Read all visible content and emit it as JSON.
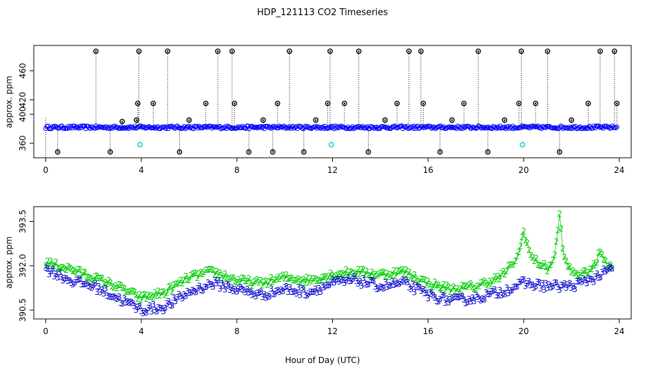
{
  "title": "HDP_121113  CO2 Timeseries",
  "xlabel": "Hour of Day (UTC)",
  "chart_data": [
    {
      "type": "scatter",
      "panel": "top",
      "ylabel": "approx. ppm",
      "xlim": [
        -0.5,
        24.5
      ],
      "ylim": [
        340,
        495
      ],
      "x_ticks": [
        0,
        4,
        8,
        12,
        16,
        20,
        24
      ],
      "y_ticks": [
        360,
        400,
        420,
        460
      ],
      "baseline": 382,
      "series": [
        {
          "color": "#000000",
          "x": [
            0.5,
            2.1,
            2.7,
            3.2,
            3.8,
            3.85,
            3.9,
            4.5,
            5.1,
            5.6,
            6.0,
            6.7,
            7.2,
            7.8,
            7.9,
            8.5,
            9.1,
            9.5,
            9.7,
            10.2,
            10.8,
            11.3,
            11.8,
            11.9,
            12.5,
            13.1,
            13.5,
            14.2,
            14.7,
            15.2,
            15.7,
            15.8,
            16.5,
            17.0,
            17.5,
            18.1,
            18.5,
            19.2,
            19.8,
            19.9,
            20.5,
            21.0,
            21.5,
            22.0,
            22.7,
            23.2,
            23.8,
            23.9
          ],
          "y": [
            348,
            487,
            348,
            390,
            392,
            415,
            487,
            415,
            487,
            348,
            392,
            415,
            487,
            487,
            415,
            348,
            392,
            348,
            415,
            487,
            348,
            392,
            415,
            487,
            415,
            487,
            348,
            392,
            415,
            487,
            487,
            415,
            348,
            392,
            415,
            487,
            348,
            392,
            415,
            487,
            415,
            487,
            348,
            392,
            415,
            487,
            487,
            415
          ]
        },
        {
          "color": "#00cccc",
          "x": [
            3.95,
            11.95,
            19.95
          ],
          "y": [
            358,
            358,
            358
          ]
        }
      ],
      "dense_band": {
        "color": "#0000ff",
        "x_range": [
          0,
          23.9
        ],
        "y_center": 382,
        "y_spread": 2
      }
    },
    {
      "type": "scatter",
      "panel": "bottom",
      "ylabel": "approx. ppm",
      "xlim": [
        -0.5,
        24.5
      ],
      "ylim": [
        390.2,
        394
      ],
      "x_ticks": [
        0,
        4,
        8,
        12,
        16,
        20,
        24
      ],
      "y_ticks": [
        390.5,
        392.0,
        393.5
      ],
      "series": [
        {
          "marker": "2",
          "color": "#00cc00",
          "x": [
            0,
            1,
            2,
            3,
            4,
            5,
            6,
            7,
            8,
            9,
            10,
            11,
            12,
            13,
            14,
            15,
            16,
            17,
            18,
            19,
            19.5,
            19.8,
            20.0,
            20.3,
            20.6,
            21.0,
            21.3,
            21.5,
            21.7,
            22.0,
            22.5,
            23.0,
            23.2,
            23.5,
            23.7
          ],
          "y": [
            392.1,
            391.9,
            391.6,
            391.3,
            390.9,
            391.1,
            391.6,
            391.8,
            391.5,
            391.4,
            391.6,
            391.5,
            391.7,
            391.8,
            391.7,
            391.8,
            391.4,
            391.2,
            391.3,
            391.6,
            392.0,
            392.4,
            393.2,
            392.3,
            392.1,
            391.9,
            392.3,
            393.7,
            392.2,
            391.8,
            391.7,
            392.0,
            392.5,
            392.1,
            391.9
          ],
          "jitter": 0.12
        },
        {
          "marker": "3",
          "color": "#0000cc",
          "x": [
            0,
            1,
            2,
            3,
            4,
            5,
            6,
            7,
            8,
            9,
            10,
            11,
            12,
            13,
            14,
            15,
            16,
            17,
            18,
            19,
            20,
            21,
            22,
            23,
            23.7
          ],
          "y": [
            391.9,
            391.5,
            391.3,
            390.9,
            390.5,
            390.6,
            391.1,
            391.4,
            391.2,
            391.0,
            391.2,
            391.1,
            391.4,
            391.5,
            391.3,
            391.4,
            391.0,
            390.8,
            390.9,
            391.1,
            391.4,
            391.3,
            391.3,
            391.6,
            391.9
          ],
          "jitter": 0.14
        }
      ]
    }
  ]
}
